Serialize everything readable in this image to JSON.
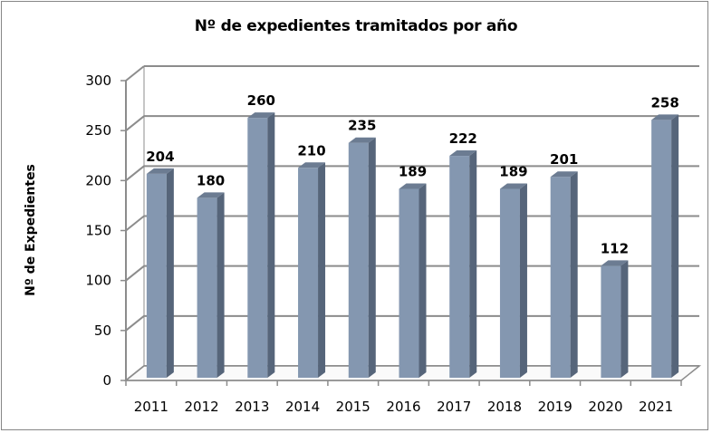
{
  "chart_data": {
    "type": "bar",
    "variant": "3d-column",
    "title": "Nº de expedientes tramitados por año",
    "xlabel": "",
    "ylabel": "Nº de Expedientes",
    "categories": [
      "2011",
      "2012",
      "2013",
      "2014",
      "2015",
      "2016",
      "2017",
      "2018",
      "2019",
      "2020",
      "2021"
    ],
    "values": [
      204,
      180,
      260,
      210,
      235,
      189,
      222,
      189,
      201,
      112,
      258
    ],
    "ylim": [
      0,
      300
    ],
    "yticks": [
      0,
      50,
      100,
      150,
      200,
      250,
      300
    ],
    "ytick_labels": [
      "0",
      "50",
      "100",
      "150",
      "200",
      "250",
      "300"
    ],
    "data_labels": [
      "204",
      "180",
      "260",
      "210",
      "235",
      "189",
      "222",
      "189",
      "201",
      "112",
      "258"
    ],
    "grid": true,
    "legend": "none",
    "colors": {
      "bar_front": "#8497B0",
      "bar_side": "#56657A",
      "bar_top": "#6C7C92",
      "grid": "#8C8C8C"
    }
  }
}
